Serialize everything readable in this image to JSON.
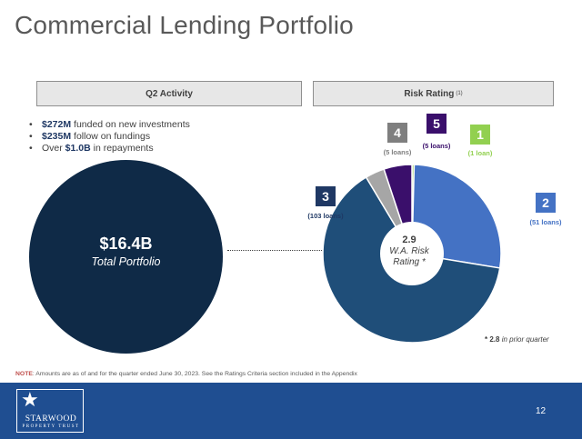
{
  "page": {
    "title": "Commercial Lending Portfolio",
    "page_number": "12"
  },
  "q2_activity": {
    "header": "Q2 Activity",
    "items": [
      {
        "value": "$272M",
        "text": " funded on new investments"
      },
      {
        "value": "$235M",
        "text": " follow on fundings"
      },
      {
        "prefix": "Over ",
        "value": "$1.0B",
        "text": " in repayments"
      }
    ],
    "total_value": "$16.4B",
    "total_label": "Total Portfolio"
  },
  "risk_rating": {
    "header": "Risk Rating",
    "header_sup": "(1)",
    "center_value": "2.9",
    "center_label_line1": "W.A. Risk",
    "center_label_line2": "Rating *",
    "prior_value": "* 2.8",
    "prior_text": " in prior quarter"
  },
  "chart_data": {
    "type": "pie",
    "title": "",
    "categories": [
      "1",
      "2",
      "3",
      "4",
      "5"
    ],
    "series": [
      {
        "values": [
          0.4,
          27.2,
          63.8,
          3.5,
          5.1
        ]
      }
    ],
    "loan_counts": [
      "(1 loan)",
      "(51 loans)",
      "(103 loans)",
      "(5 loans)",
      "(5 loans)"
    ],
    "colors": [
      "#92d050",
      "#4472c4",
      "#1f4e79",
      "#a6a6a6",
      "#3a0f6b"
    ],
    "badge_colors": [
      "#92d050",
      "#4472c4",
      "#1f3864",
      "#7f7f7f",
      "#3a0f6b"
    ],
    "label_colors": [
      "#92d050",
      "#4472c4",
      "#1f3864",
      "#7f7f7f",
      "#3a0f6b"
    ]
  },
  "note": {
    "label": "NOTE",
    "text": ": Amounts are as of and for the quarter ended June 30, 2023. See the Ratings Criteria section included in the Appendix"
  },
  "footer": {
    "logo_name": "STARWOOD",
    "logo_sub": "PROPERTY TRUST",
    "logo_icon": "star-icon"
  }
}
